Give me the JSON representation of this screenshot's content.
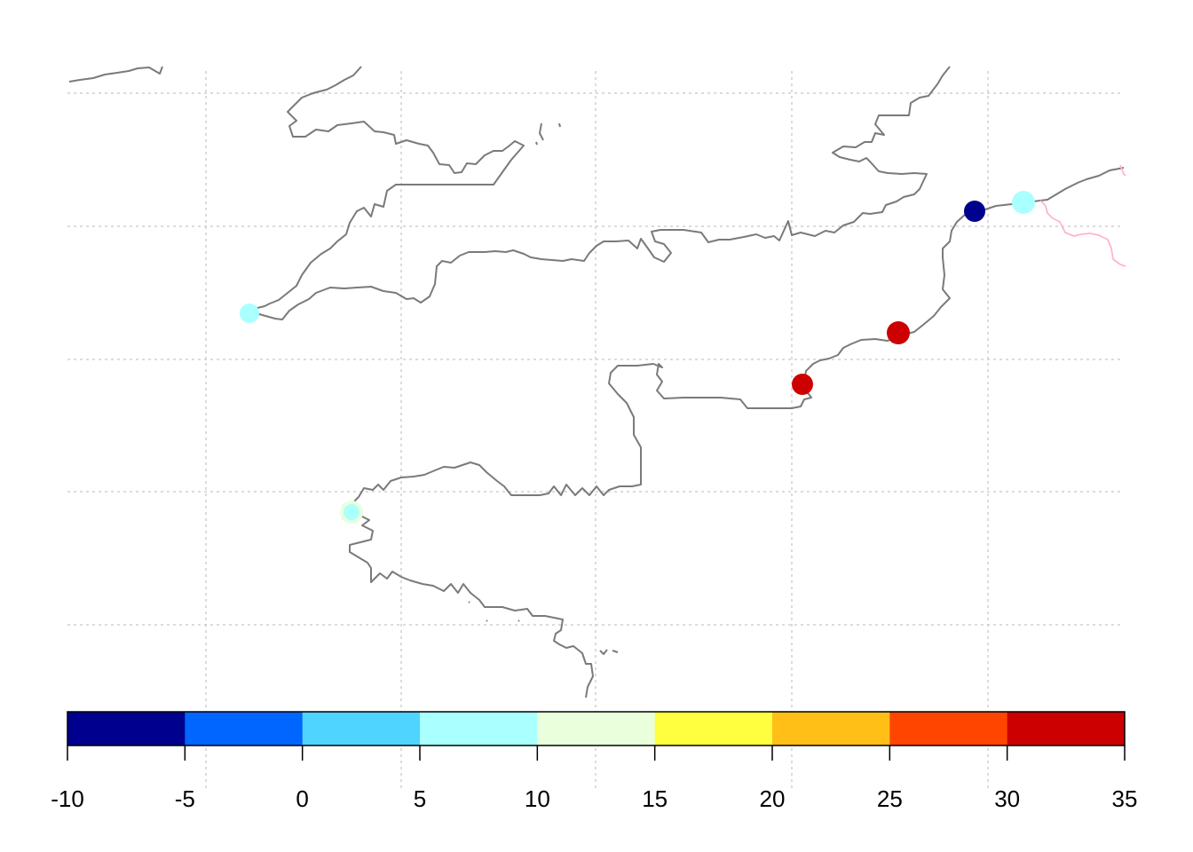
{
  "colorbar": {
    "breaks": [
      -10,
      -5,
      0,
      5,
      10,
      15,
      20,
      25,
      30,
      35
    ],
    "colors": [
      "#00008f",
      "#0066ff",
      "#4fd4ff",
      "#aaffff",
      "#eaffdc",
      "#ffff40",
      "#ffbf17",
      "#ff4500",
      "#cc0000"
    ],
    "tick_labels": [
      "-10",
      "-5",
      "0",
      "5",
      "10",
      "15",
      "20",
      "25",
      "30",
      "35"
    ]
  },
  "stations": [
    {
      "value": 8,
      "color": "#aaffff"
    },
    {
      "value": 10,
      "color": "#eaffdc"
    },
    {
      "value": 8,
      "color": "#aaffff"
    },
    {
      "value": 33,
      "color": "#cc0000"
    },
    {
      "value": 33,
      "color": "#cc0000"
    },
    {
      "value": -8,
      "color": "#00008f"
    },
    {
      "value": 8,
      "color": "#aaffff"
    }
  ]
}
